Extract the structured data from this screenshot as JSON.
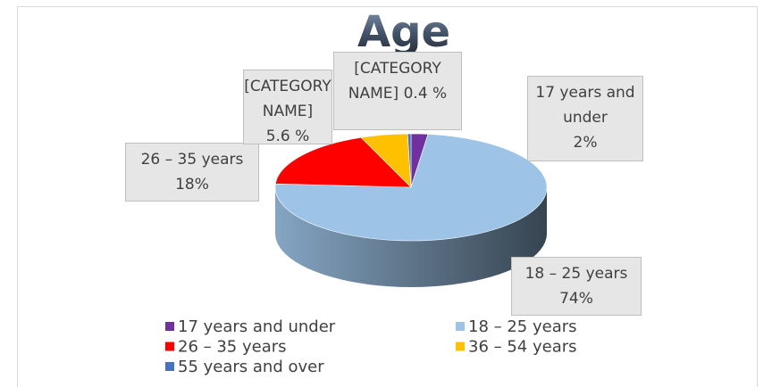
{
  "chart_data": {
    "type": "pie",
    "title": "Age",
    "categories": [
      "17 years and under",
      "18 – 25 years",
      "26 – 35 years",
      "36 – 54 years",
      "55 years and over"
    ],
    "values": [
      2,
      74,
      18,
      5.6,
      0.4
    ],
    "value_labels": [
      "2%",
      "74%",
      "18%",
      "5.6 %",
      "0.4 %"
    ],
    "data_label_names": [
      "17 years and under",
      "18 – 25 years",
      "26 – 35 years",
      "[CATEGORY NAME]",
      "[CATEGORY NAME]"
    ],
    "colors": [
      "#7030a0",
      "#9dc3e6",
      "#ff0000",
      "#ffc000",
      "#4472c4"
    ],
    "legend": "bottom"
  }
}
